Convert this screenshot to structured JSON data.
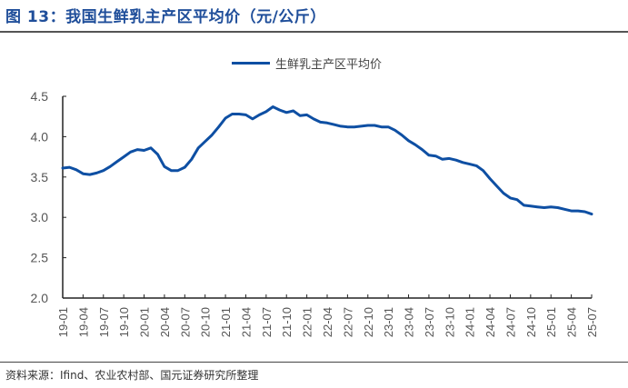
{
  "header": {
    "title": "图 13：我国生鲜乳主产区平均价（元/公斤）"
  },
  "legend": {
    "label": "生鲜乳主产区平均价",
    "color": "#0e4fa3"
  },
  "footer": {
    "source": "资料来源：Ifind、农业农村部、国元证券研究所整理"
  },
  "chart_data": {
    "type": "line",
    "title": "我国生鲜乳主产区平均价（元/公斤）",
    "xlabel": "",
    "ylabel": "",
    "ylim": [
      2.0,
      4.5
    ],
    "yticks": [
      "4.5",
      "4.0",
      "3.5",
      "3.0",
      "2.5",
      "2.0"
    ],
    "ytick_values": [
      4.5,
      4.0,
      3.5,
      3.0,
      2.5,
      2.0
    ],
    "xticks": [
      "19-01",
      "19-04",
      "19-07",
      "19-10",
      "20-01",
      "20-04",
      "20-07",
      "20-10",
      "21-01",
      "21-04",
      "21-07",
      "21-10",
      "22-01",
      "22-04",
      "22-07",
      "22-10",
      "23-01",
      "23-04",
      "23-07",
      "23-10",
      "24-01",
      "24-04",
      "24-07",
      "24-10",
      "25-01",
      "25-04",
      "25-07"
    ],
    "grid": false,
    "legend_position": "top-center",
    "series": [
      {
        "name": "生鲜乳主产区平均价",
        "color": "#0e4fa3",
        "x": [
          "19-01",
          "19-02",
          "19-03",
          "19-04",
          "19-05",
          "19-06",
          "19-07",
          "19-08",
          "19-09",
          "19-10",
          "19-11",
          "19-12",
          "20-01",
          "20-02",
          "20-03",
          "20-04",
          "20-05",
          "20-06",
          "20-07",
          "20-08",
          "20-09",
          "20-10",
          "20-11",
          "20-12",
          "21-01",
          "21-02",
          "21-03",
          "21-04",
          "21-05",
          "21-06",
          "21-07",
          "21-08",
          "21-09",
          "21-10",
          "21-11",
          "21-12",
          "22-01",
          "22-02",
          "22-03",
          "22-04",
          "22-05",
          "22-06",
          "22-07",
          "22-08",
          "22-09",
          "22-10",
          "22-11",
          "22-12",
          "23-01",
          "23-02",
          "23-03",
          "23-04",
          "23-05",
          "23-06",
          "23-07",
          "23-08",
          "23-09",
          "23-10",
          "23-11",
          "23-12",
          "24-01",
          "24-02",
          "24-03",
          "24-04",
          "24-05",
          "24-06",
          "24-07",
          "24-08",
          "24-09",
          "24-10",
          "24-11",
          "24-12",
          "25-01",
          "25-02",
          "25-03",
          "25-04",
          "25-05",
          "25-06",
          "25-07"
        ],
        "values": [
          3.61,
          3.62,
          3.59,
          3.54,
          3.53,
          3.55,
          3.58,
          3.63,
          3.69,
          3.75,
          3.81,
          3.84,
          3.83,
          3.86,
          3.78,
          3.63,
          3.58,
          3.58,
          3.62,
          3.72,
          3.86,
          3.94,
          4.02,
          4.12,
          4.23,
          4.28,
          4.28,
          4.27,
          4.22,
          4.27,
          4.31,
          4.37,
          4.33,
          4.3,
          4.32,
          4.26,
          4.27,
          4.22,
          4.18,
          4.17,
          4.15,
          4.13,
          4.12,
          4.12,
          4.13,
          4.14,
          4.14,
          4.12,
          4.12,
          4.08,
          4.02,
          3.95,
          3.9,
          3.84,
          3.77,
          3.76,
          3.72,
          3.73,
          3.71,
          3.68,
          3.66,
          3.64,
          3.58,
          3.48,
          3.39,
          3.3,
          3.24,
          3.22,
          3.15,
          3.14,
          3.13,
          3.12,
          3.13,
          3.12,
          3.1,
          3.08,
          3.08,
          3.07,
          3.04
        ]
      }
    ]
  }
}
